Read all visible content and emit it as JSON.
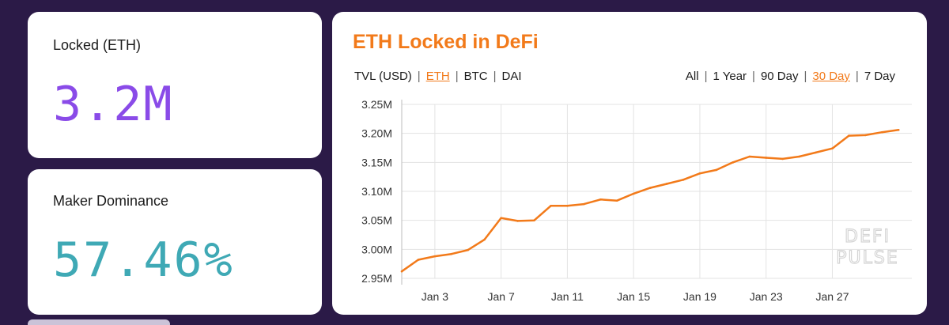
{
  "stats": {
    "locked": {
      "label": "Locked (ETH)",
      "value": "3.2M",
      "color": "#8a4be8"
    },
    "maker": {
      "label": "Maker Dominance",
      "value": "57.46%",
      "color": "#3fa9b5"
    }
  },
  "chart_card": {
    "title": "ETH Locked in DeFi",
    "currency_toggles": [
      {
        "label": "TVL (USD)",
        "active": false
      },
      {
        "label": "ETH",
        "active": true
      },
      {
        "label": "BTC",
        "active": false
      },
      {
        "label": "DAI",
        "active": false
      }
    ],
    "range_toggles": [
      {
        "label": "All",
        "active": false
      },
      {
        "label": "1 Year",
        "active": false
      },
      {
        "label": "90 Day",
        "active": false
      },
      {
        "label": "30 Day",
        "active": true
      },
      {
        "label": "7 Day",
        "active": false
      }
    ],
    "watermark": [
      "DEFI",
      "PULSE"
    ]
  },
  "chart_data": {
    "type": "line",
    "title": "ETH Locked in DeFi",
    "xlabel": "",
    "ylabel": "",
    "x": [
      1,
      2,
      3,
      4,
      5,
      6,
      7,
      8,
      9,
      10,
      11,
      12,
      13,
      14,
      15,
      16,
      17,
      18,
      19,
      20,
      21,
      22,
      23,
      24,
      25,
      26,
      27,
      28,
      29,
      30,
      31
    ],
    "y": [
      2.962,
      2.982,
      2.988,
      2.992,
      2.999,
      3.017,
      3.054,
      3.049,
      3.05,
      3.075,
      3.075,
      3.078,
      3.086,
      3.084,
      3.096,
      3.106,
      3.113,
      3.12,
      3.131,
      3.137,
      3.15,
      3.16,
      3.158,
      3.156,
      3.16,
      3.167,
      3.174,
      3.196,
      3.197,
      3.202,
      3.206
    ],
    "x_ticks": [
      {
        "x": 3,
        "label": "Jan 3"
      },
      {
        "x": 7,
        "label": "Jan 7"
      },
      {
        "x": 11,
        "label": "Jan 11"
      },
      {
        "x": 15,
        "label": "Jan 15"
      },
      {
        "x": 19,
        "label": "Jan 19"
      },
      {
        "x": 23,
        "label": "Jan 23"
      },
      {
        "x": 27,
        "label": "Jan 27"
      }
    ],
    "y_ticks": [
      {
        "y": 2.95,
        "label": "2.95M"
      },
      {
        "y": 3.0,
        "label": "3.00M"
      },
      {
        "y": 3.05,
        "label": "3.05M"
      },
      {
        "y": 3.1,
        "label": "3.10M"
      },
      {
        "y": 3.15,
        "label": "3.15M"
      },
      {
        "y": 3.2,
        "label": "3.20M"
      },
      {
        "y": 3.25,
        "label": "3.25M"
      }
    ],
    "xlim": [
      1,
      31.8
    ],
    "ylim": [
      2.95,
      3.25
    ],
    "grid": true,
    "line_color": "#f27a1a",
    "legend": "none"
  }
}
